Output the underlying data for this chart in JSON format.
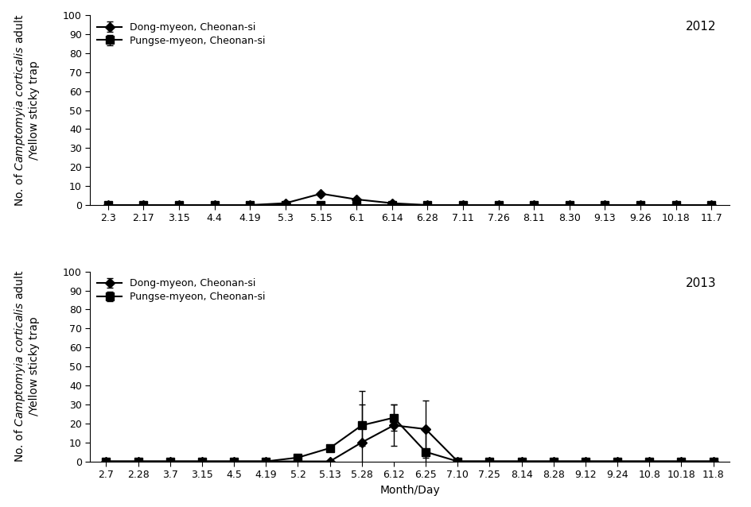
{
  "top": {
    "year": "2012",
    "xtick_labels": [
      "2.3",
      "2.17",
      "3.15",
      "4.4",
      "4.19",
      "5.3",
      "5.15",
      "6.1",
      "6.14",
      "6.28",
      "7.11",
      "7.26",
      "8.11",
      "8.30",
      "9.13",
      "9.26",
      "10.18",
      "11.7"
    ],
    "dong_values": [
      0,
      0,
      0,
      0,
      0,
      1,
      6,
      3,
      1,
      0,
      0,
      0,
      0,
      0,
      0,
      0,
      0,
      0
    ],
    "dong_errors": [
      0,
      0,
      0,
      0,
      0,
      0,
      0,
      0,
      0,
      0,
      0,
      0,
      0,
      0,
      0,
      0,
      0,
      0
    ],
    "pungse_values": [
      0,
      0,
      0,
      0,
      0,
      0,
      0,
      0,
      0,
      0,
      0,
      0,
      0,
      0,
      0,
      0,
      0,
      0
    ],
    "pungse_errors": [
      0,
      0,
      0,
      0,
      0,
      0,
      0,
      0,
      0,
      0,
      0,
      0,
      0,
      0,
      0,
      0,
      0,
      0
    ],
    "ylim": [
      0,
      100
    ],
    "yticks": [
      0,
      10,
      20,
      30,
      40,
      50,
      60,
      70,
      80,
      90,
      100
    ]
  },
  "bottom": {
    "year": "2013",
    "xtick_labels": [
      "2.7",
      "2.28",
      "3.7",
      "3.15",
      "4.5",
      "4.19",
      "5.2",
      "5.13",
      "5.28",
      "6.12",
      "6.25",
      "7.10",
      "7.25",
      "8.14",
      "8.28",
      "9.12",
      "9.24",
      "10.8",
      "10.18",
      "11.8"
    ],
    "dong_values": [
      0,
      0,
      0,
      0,
      0,
      0,
      0,
      0,
      10,
      19,
      17,
      0,
      0,
      0,
      0,
      0,
      0,
      0,
      0,
      0
    ],
    "dong_errors": [
      0,
      0,
      0,
      0,
      0,
      0,
      0,
      0,
      27,
      11,
      15,
      0,
      0,
      0,
      0,
      0,
      0,
      0,
      0,
      0
    ],
    "pungse_values": [
      0,
      0,
      0,
      0,
      0,
      0,
      2,
      7,
      19,
      23,
      5,
      0,
      0,
      0,
      0,
      0,
      0,
      0,
      0,
      0
    ],
    "pungse_errors": [
      0,
      0,
      0,
      0,
      0,
      0,
      0,
      0,
      11,
      7,
      11,
      0,
      0,
      0,
      0,
      0,
      0,
      0,
      0,
      0
    ],
    "ylim": [
      0,
      100
    ],
    "yticks": [
      0,
      10,
      20,
      30,
      40,
      50,
      60,
      70,
      80,
      90,
      100
    ],
    "xlabel": "Month/Day"
  },
  "ylabel_line1": "No. of ",
  "ylabel_line2": "Camptomyia corticalis",
  "ylabel_line3": " adult",
  "ylabel_line4": "/Yellow sticky trap",
  "legend_dong": "Dong-myeon, Cheonan-si",
  "legend_pungse": "Pungse-myeon, Cheonan-si",
  "line_color": "#000000",
  "marker_dong": "D",
  "marker_pungse": "s",
  "marker_size": 6,
  "line_width": 1.5,
  "font_size_tick": 9,
  "font_size_label": 10,
  "font_size_legend": 9,
  "font_size_year": 11
}
